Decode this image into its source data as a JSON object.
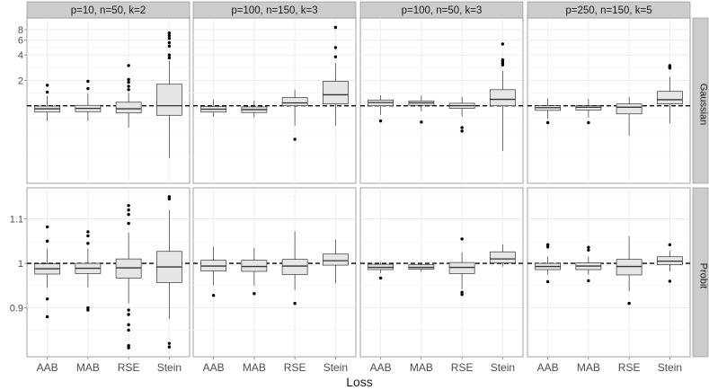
{
  "chart_data": {
    "type": "boxplot",
    "xlabel": "Loss",
    "categories": [
      "AAB",
      "MAB",
      "RSE",
      "Stein"
    ],
    "column_panels": [
      "p=10, n=50, k=2",
      "p=100, n=150, k=3",
      "p=100, n=50, k=3",
      "p=250, n=150, k=5"
    ],
    "row_panels": [
      "Gaussian",
      "Probit"
    ],
    "reference_line": 1.0,
    "rows": [
      {
        "label": "Gaussian",
        "scale": "log",
        "ylim": [
          0.12,
          11
        ],
        "yticks": [
          2,
          4,
          6,
          8
        ],
        "panels": [
          {
            "boxes": [
              {
                "q1": 0.84,
                "median": 0.92,
                "q3": 0.99,
                "whisker_low": 0.66,
                "whisker_high": 1.3,
                "outliers": [
                  1.45,
                  1.75
                ]
              },
              {
                "q1": 0.85,
                "median": 0.93,
                "q3": 1.01,
                "whisker_low": 0.66,
                "whisker_high": 1.4,
                "outliers": [
                  1.6,
                  1.95
                ]
              },
              {
                "q1": 0.82,
                "median": 0.92,
                "q3": 1.1,
                "whisker_low": 0.55,
                "whisker_high": 1.42,
                "outliers": [
                  1.55,
                  1.7,
                  1.9,
                  2.05,
                  3.0
                ]
              },
              {
                "q1": 0.77,
                "median": 1.0,
                "q3": 1.8,
                "whisker_low": 0.24,
                "whisker_high": 3.4,
                "outliers": [
                  3.7,
                  4.0,
                  5.1,
                  5.6,
                  6.3,
                  6.8,
                  7.3
                ]
              }
            ]
          },
          {
            "boxes": [
              {
                "q1": 0.84,
                "median": 0.91,
                "q3": 0.98,
                "whisker_low": 0.74,
                "whisker_high": 1.18,
                "outliers": []
              },
              {
                "q1": 0.83,
                "median": 0.9,
                "q3": 0.97,
                "whisker_low": 0.73,
                "whisker_high": 1.15,
                "outliers": []
              },
              {
                "q1": 1.0,
                "median": 1.08,
                "q3": 1.25,
                "whisker_low": 0.58,
                "whisker_high": 1.55,
                "outliers": [
                  0.4
                ]
              },
              {
                "q1": 1.05,
                "median": 1.35,
                "q3": 1.95,
                "whisker_low": 0.58,
                "whisker_high": 3.2,
                "outliers": [
                  3.8,
                  4.9,
                  8.5
                ]
              }
            ]
          },
          {
            "boxes": [
              {
                "q1": 1.0,
                "median": 1.09,
                "q3": 1.17,
                "whisker_low": 0.78,
                "whisker_high": 1.33,
                "outliers": [
                  0.66
                ]
              },
              {
                "q1": 1.01,
                "median": 1.08,
                "q3": 1.14,
                "whisker_low": 0.86,
                "whisker_high": 1.32,
                "outliers": [
                  0.64
                ]
              },
              {
                "q1": 0.93,
                "median": 1.0,
                "q3": 1.07,
                "whisker_low": 0.74,
                "whisker_high": 1.27,
                "outliers": [
                  0.5,
                  0.55
                ]
              },
              {
                "q1": 1.0,
                "median": 1.19,
                "q3": 1.55,
                "whisker_low": 0.29,
                "whisker_high": 2.6,
                "outliers": [
                  3.05,
                  3.2,
                  3.35,
                  3.5,
                  5.4
                ]
              }
            ]
          },
          {
            "boxes": [
              {
                "q1": 0.88,
                "median": 0.95,
                "q3": 1.0,
                "whisker_low": 0.7,
                "whisker_high": 1.22,
                "outliers": [
                  0.63
                ]
              },
              {
                "q1": 0.89,
                "median": 0.96,
                "q3": 1.0,
                "whisker_low": 0.72,
                "whisker_high": 1.2,
                "outliers": [
                  0.63
                ]
              },
              {
                "q1": 0.8,
                "median": 0.96,
                "q3": 1.05,
                "whisker_low": 0.44,
                "whisker_high": 1.28,
                "outliers": []
              },
              {
                "q1": 1.05,
                "median": 1.18,
                "q3": 1.48,
                "whisker_low": 0.62,
                "whisker_high": 2.2,
                "outliers": [
                  2.8,
                  2.9,
                  3.0
                ]
              }
            ]
          }
        ]
      },
      {
        "label": "Probit",
        "scale": "linear",
        "ylim": [
          0.79,
          1.17
        ],
        "yticks": [
          0.9,
          1.0,
          1.1
        ],
        "panels": [
          {
            "boxes": [
              {
                "q1": 0.976,
                "median": 0.988,
                "q3": 0.999,
                "whisker_low": 0.945,
                "whisker_high": 1.033,
                "outliers": [
                  1.082,
                  1.05,
                  0.92,
                  0.88
                ]
              },
              {
                "q1": 0.977,
                "median": 0.989,
                "q3": 1.0,
                "whisker_low": 0.946,
                "whisker_high": 1.033,
                "outliers": [
                  1.071,
                  1.062,
                  1.045,
                  0.9,
                  0.895
                ]
              },
              {
                "q1": 0.967,
                "median": 0.99,
                "q3": 1.01,
                "whisker_low": 0.91,
                "whisker_high": 1.069,
                "outliers": [
                  1.13,
                  1.12,
                  1.11,
                  1.09,
                  0.895,
                  0.885,
                  0.862,
                  0.85,
                  0.815,
                  0.81
                ]
              },
              {
                "q1": 0.957,
                "median": 0.992,
                "q3": 1.027,
                "whisker_low": 0.875,
                "whisker_high": 1.12,
                "outliers": [
                  1.15,
                  1.145,
                  0.82,
                  0.812
                ]
              }
            ]
          },
          {
            "boxes": [
              {
                "q1": 0.983,
                "median": 0.994,
                "q3": 1.007,
                "whisker_low": 0.951,
                "whisker_high": 1.037,
                "outliers": [
                  0.928
                ]
              },
              {
                "q1": 0.982,
                "median": 0.993,
                "q3": 1.007,
                "whisker_low": 0.95,
                "whisker_high": 1.035,
                "outliers": [
                  0.932
                ]
              },
              {
                "q1": 0.975,
                "median": 0.994,
                "q3": 1.009,
                "whisker_low": 0.94,
                "whisker_high": 1.072,
                "outliers": [
                  0.91
                ]
              },
              {
                "q1": 0.996,
                "median": 1.006,
                "q3": 1.021,
                "whisker_low": 0.955,
                "whisker_high": 1.053,
                "outliers": []
              }
            ]
          },
          {
            "boxes": [
              {
                "q1": 0.986,
                "median": 0.991,
                "q3": 0.998,
                "whisker_low": 0.978,
                "whisker_high": 1.003,
                "outliers": [
                  0.967
                ]
              },
              {
                "q1": 0.987,
                "median": 0.991,
                "q3": 0.997,
                "whisker_low": 0.981,
                "whisker_high": 1.002,
                "outliers": []
              },
              {
                "q1": 0.977,
                "median": 0.991,
                "q3": 1.002,
                "whisker_low": 0.942,
                "whisker_high": 1.025,
                "outliers": [
                  1.055,
                  0.935,
                  0.93
                ]
              },
              {
                "q1": 1.001,
                "median": 1.01,
                "q3": 1.026,
                "whisker_low": 0.993,
                "whisker_high": 1.043,
                "outliers": []
              }
            ]
          },
          {
            "boxes": [
              {
                "q1": 0.986,
                "median": 0.993,
                "q3": 1.0,
                "whisker_low": 0.975,
                "whisker_high": 1.015,
                "outliers": [
                  1.042,
                  1.037,
                  0.959
                ]
              },
              {
                "q1": 0.986,
                "median": 0.994,
                "q3": 1.001,
                "whisker_low": 0.975,
                "whisker_high": 1.015,
                "outliers": [
                  1.036,
                  1.03,
                  0.961
                ]
              },
              {
                "q1": 0.974,
                "median": 0.993,
                "q3": 1.009,
                "whisker_low": 0.937,
                "whisker_high": 1.061,
                "outliers": [
                  0.91
                ]
              },
              {
                "q1": 0.997,
                "median": 1.005,
                "q3": 1.015,
                "whisker_low": 0.982,
                "whisker_high": 1.028,
                "outliers": [
                  1.042,
                  0.96
                ]
              }
            ]
          }
        ]
      }
    ]
  }
}
